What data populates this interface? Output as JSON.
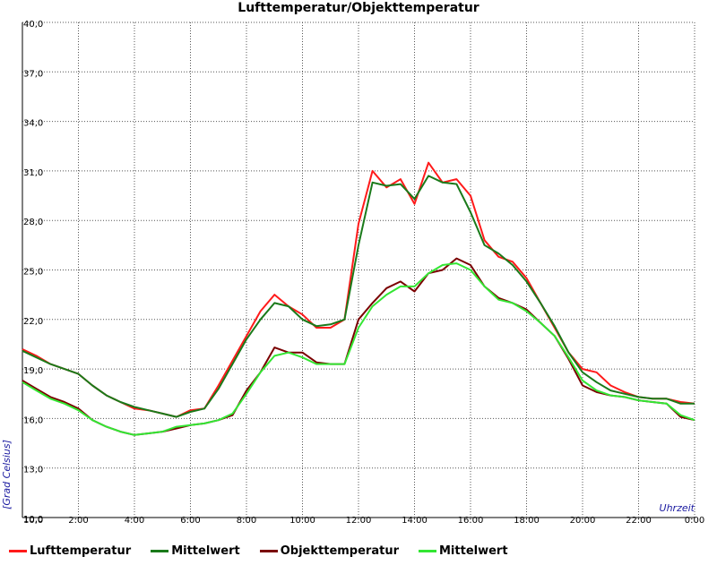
{
  "chart_data": {
    "type": "line",
    "title": "Lufttemperatur/Objekttemperatur",
    "xlabel": "Uhrzeit",
    "ylabel": "[Grad Celsius]",
    "ylim": [
      10.0,
      40.0
    ],
    "xlim": [
      0,
      24
    ],
    "y_ticks": [
      "10,0",
      "13,0",
      "16,0",
      "19,0",
      "22,0",
      "25,0",
      "28,0",
      "31,0",
      "34,0",
      "37,0",
      "40,0"
    ],
    "x_ticks": [
      "2:00",
      "4:00",
      "6:00",
      "8:00",
      "10:00",
      "12:00",
      "14:00",
      "16:00",
      "18:00",
      "20:00",
      "22:00",
      "0:00"
    ],
    "grid": true,
    "legend_position": "bottom",
    "series": [
      {
        "name": "Lufttemperatur",
        "color": "#ff1a1a",
        "x": [
          0,
          0.5,
          1,
          1.5,
          2,
          2.5,
          3,
          3.5,
          4,
          4.5,
          5,
          5.5,
          6,
          6.5,
          7,
          7.5,
          8,
          8.5,
          9,
          9.5,
          10,
          10.5,
          11,
          11.5,
          12,
          12.5,
          13,
          13.5,
          14,
          14.5,
          15,
          15.5,
          16,
          16.5,
          17,
          17.5,
          18,
          18.5,
          19,
          19.5,
          20,
          20.5,
          21,
          21.5,
          22,
          22.5,
          23,
          23.5,
          24
        ],
        "values": [
          20.2,
          19.8,
          19.3,
          19.0,
          18.7,
          18.0,
          17.4,
          17.0,
          16.6,
          16.5,
          16.3,
          16.1,
          16.5,
          16.6,
          18.0,
          19.5,
          21.0,
          22.5,
          23.5,
          22.8,
          22.3,
          21.5,
          21.5,
          22.0,
          27.8,
          31.0,
          30.0,
          30.5,
          29.0,
          31.5,
          30.3,
          30.5,
          29.5,
          26.8,
          25.8,
          25.5,
          24.5,
          23.0,
          21.5,
          20.0,
          19.0,
          18.8,
          18.0,
          17.6,
          17.3,
          17.2,
          17.2,
          17.0,
          16.9
        ]
      },
      {
        "name": "Mittelwert",
        "color": "#1a7a1a",
        "x": [
          0,
          0.5,
          1,
          1.5,
          2,
          2.5,
          3,
          3.5,
          4,
          4.5,
          5,
          5.5,
          6,
          6.5,
          7,
          7.5,
          8,
          8.5,
          9,
          9.5,
          10,
          10.5,
          11,
          11.5,
          12,
          12.5,
          13,
          13.5,
          14,
          14.5,
          15,
          15.5,
          16,
          16.5,
          17,
          17.5,
          18,
          18.5,
          19,
          19.5,
          20,
          20.5,
          21,
          21.5,
          22,
          22.5,
          23,
          23.5,
          24
        ],
        "values": [
          20.1,
          19.7,
          19.3,
          19.0,
          18.7,
          18.0,
          17.4,
          17.0,
          16.7,
          16.5,
          16.3,
          16.1,
          16.4,
          16.6,
          17.8,
          19.3,
          20.8,
          22.0,
          23.0,
          22.8,
          22.0,
          21.6,
          21.7,
          22.0,
          26.5,
          30.3,
          30.1,
          30.2,
          29.3,
          30.7,
          30.3,
          30.2,
          28.5,
          26.5,
          26.0,
          25.3,
          24.3,
          23.0,
          21.6,
          20.0,
          18.8,
          18.2,
          17.7,
          17.5,
          17.3,
          17.2,
          17.2,
          16.9,
          16.9
        ]
      },
      {
        "name": "Objekttemperatur",
        "color": "#7a0000",
        "x": [
          0,
          0.5,
          1,
          1.5,
          2,
          2.5,
          3,
          3.5,
          4,
          4.5,
          5,
          5.5,
          6,
          6.5,
          7,
          7.5,
          8,
          8.5,
          9,
          9.5,
          10,
          10.5,
          11,
          11.5,
          12,
          12.5,
          13,
          13.5,
          14,
          14.5,
          15,
          15.5,
          16,
          16.5,
          17,
          17.5,
          18,
          18.5,
          19,
          19.5,
          20,
          20.5,
          21,
          21.5,
          22,
          22.5,
          23,
          23.5,
          24
        ],
        "values": [
          18.3,
          17.8,
          17.3,
          17.0,
          16.6,
          15.9,
          15.5,
          15.2,
          15.0,
          15.1,
          15.2,
          15.4,
          15.6,
          15.7,
          15.9,
          16.2,
          17.7,
          18.8,
          20.3,
          20.0,
          20.0,
          19.4,
          19.3,
          19.3,
          22.0,
          23.0,
          23.9,
          24.3,
          23.7,
          24.8,
          25.0,
          25.7,
          25.3,
          24.0,
          23.3,
          23.0,
          22.6,
          21.8,
          21.0,
          19.6,
          18.0,
          17.6,
          17.4,
          17.3,
          17.1,
          17.0,
          16.9,
          16.1,
          15.9
        ]
      },
      {
        "name": "Mittelwert",
        "color": "#33e633",
        "x": [
          0,
          0.5,
          1,
          1.5,
          2,
          2.5,
          3,
          3.5,
          4,
          4.5,
          5,
          5.5,
          6,
          6.5,
          7,
          7.5,
          8,
          8.5,
          9,
          9.5,
          10,
          10.5,
          11,
          11.5,
          12,
          12.5,
          13,
          13.5,
          14,
          14.5,
          15,
          15.5,
          16,
          16.5,
          17,
          17.5,
          18,
          18.5,
          19,
          19.5,
          20,
          20.5,
          21,
          21.5,
          22,
          22.5,
          23,
          23.5,
          24
        ],
        "values": [
          18.2,
          17.7,
          17.2,
          16.9,
          16.5,
          15.9,
          15.5,
          15.2,
          15.0,
          15.1,
          15.2,
          15.5,
          15.6,
          15.7,
          15.9,
          16.3,
          17.5,
          18.8,
          19.8,
          20.0,
          19.7,
          19.3,
          19.3,
          19.3,
          21.5,
          22.8,
          23.5,
          24.0,
          24.0,
          24.8,
          25.3,
          25.4,
          25.0,
          24.0,
          23.2,
          23.0,
          22.5,
          21.8,
          21.0,
          19.7,
          18.3,
          17.7,
          17.4,
          17.3,
          17.1,
          17.0,
          16.9,
          16.2,
          15.9
        ]
      }
    ]
  }
}
